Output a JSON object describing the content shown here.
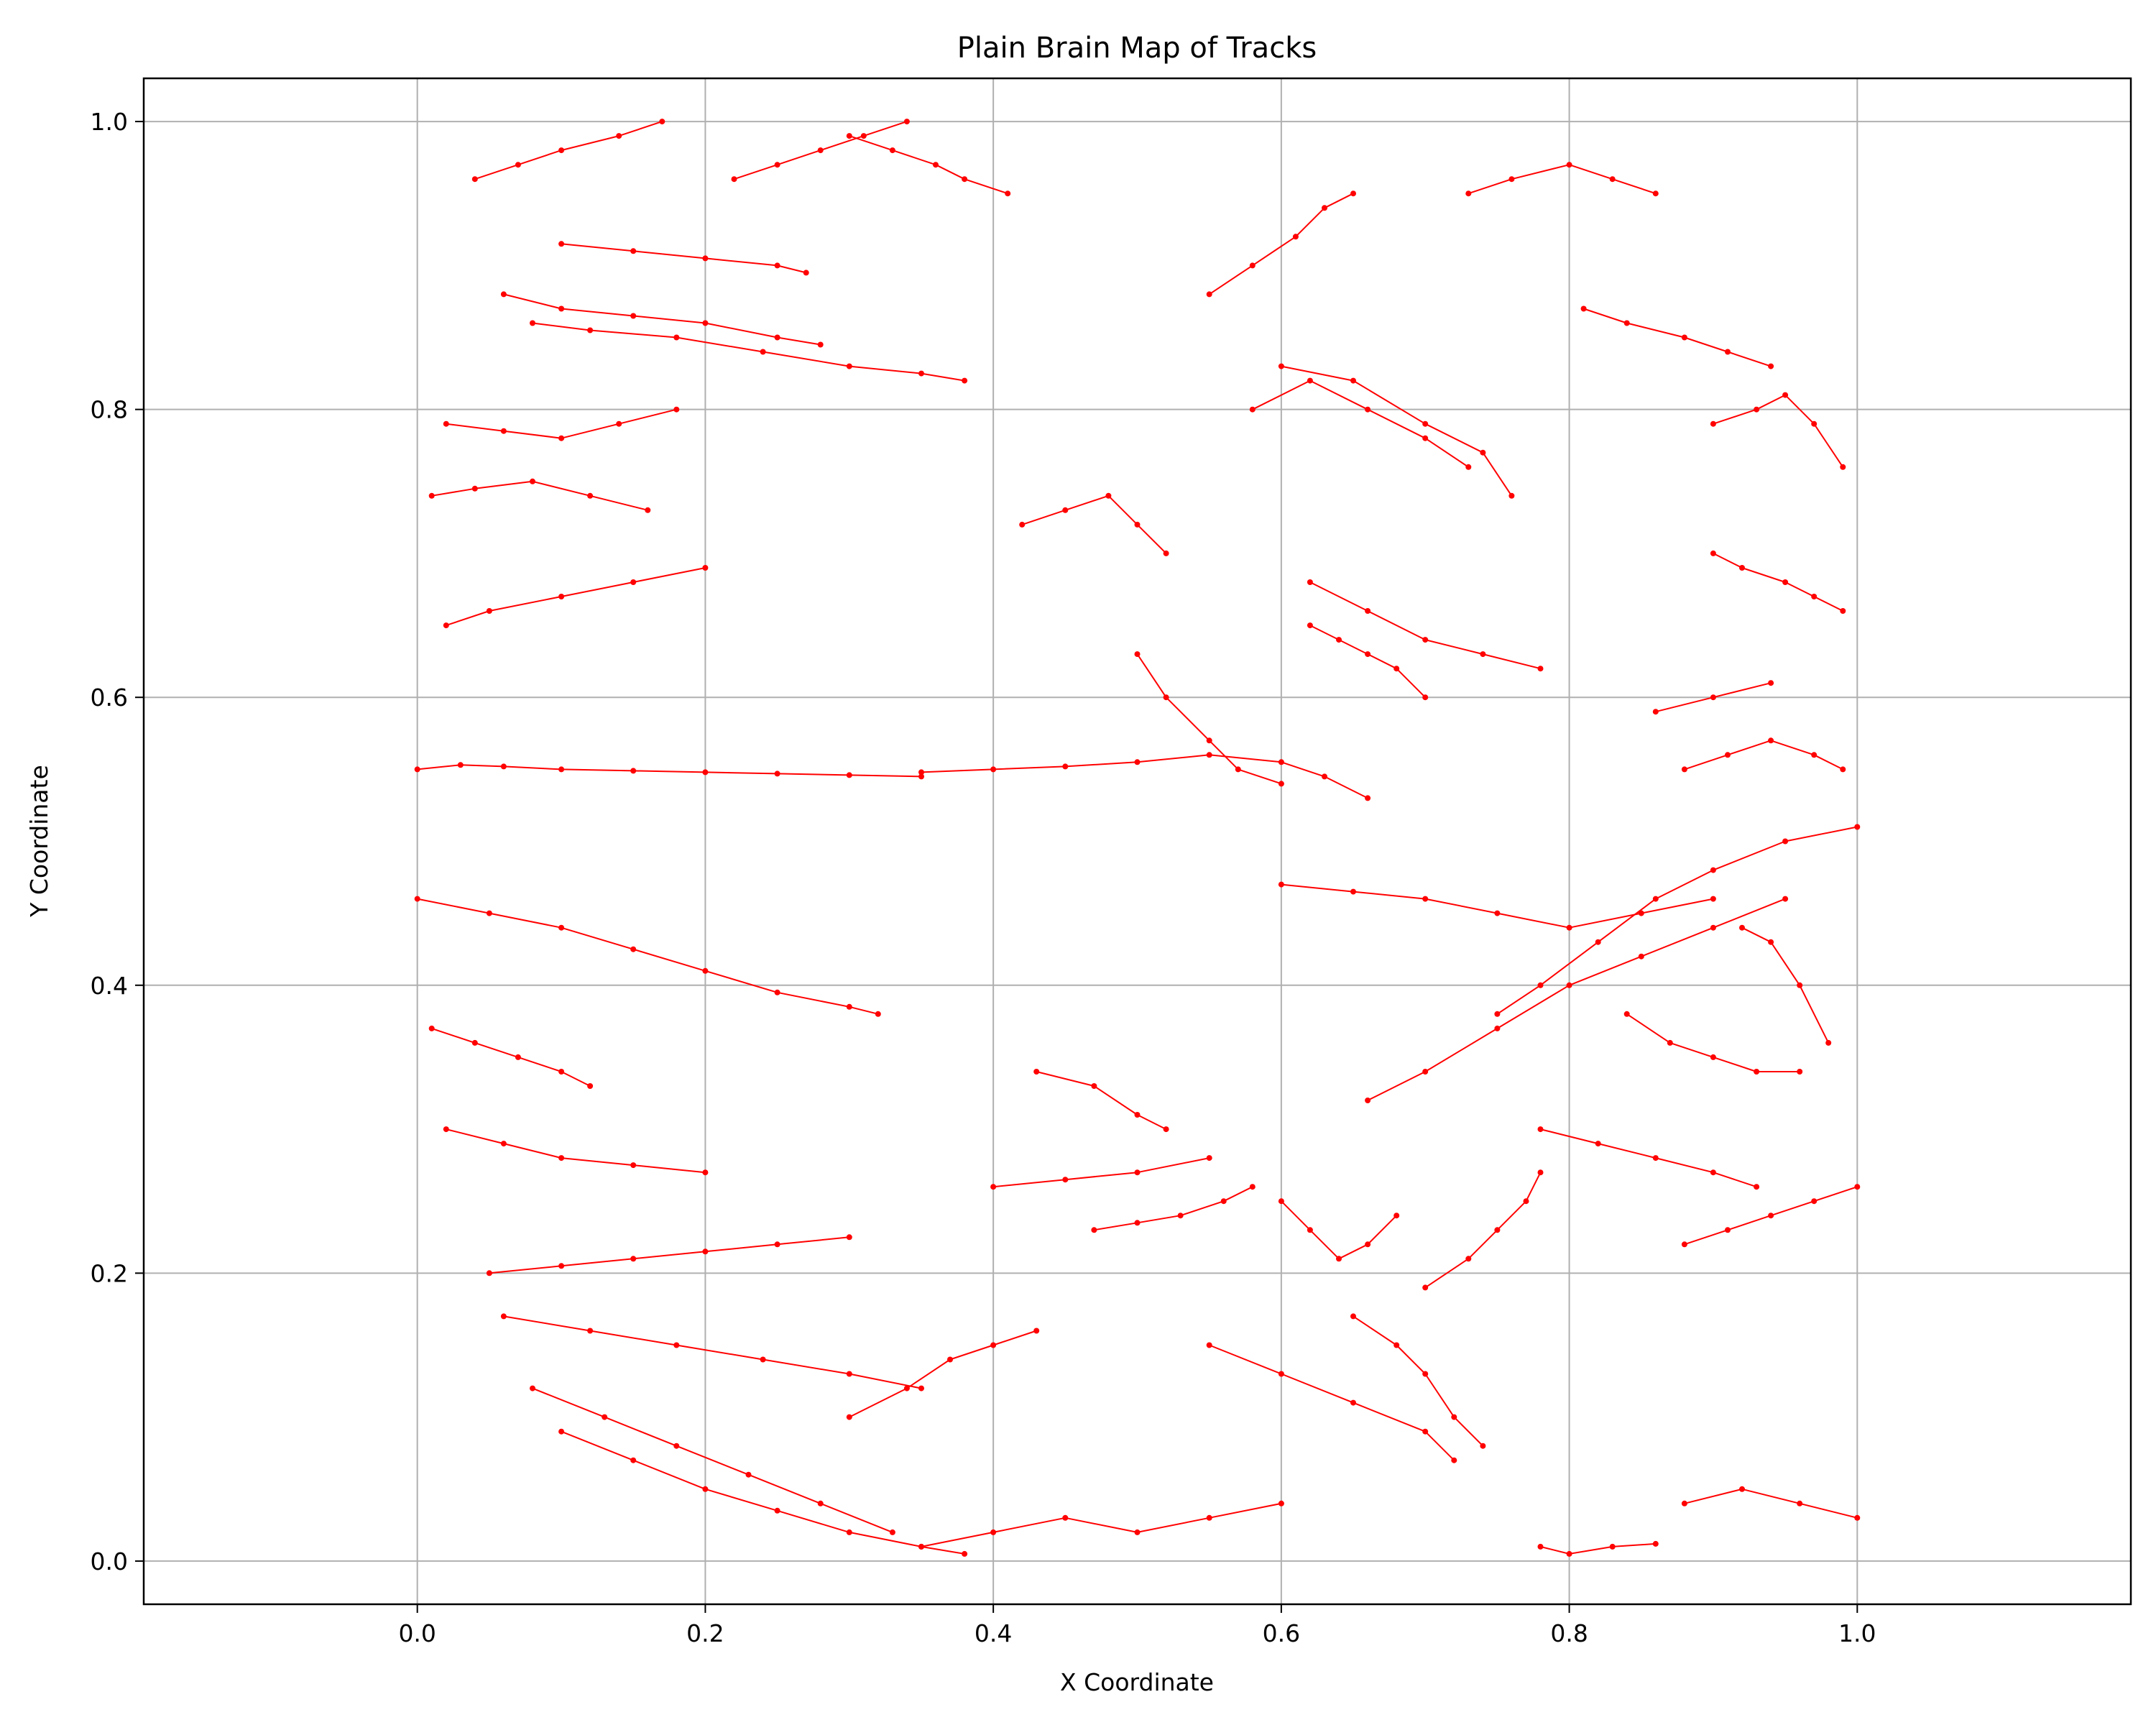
{
  "chart_data": {
    "type": "line",
    "title": "Plain Brain Map of Tracks",
    "xlabel": "X Coordinate",
    "ylabel": "Y Coordinate",
    "xlim": [
      -0.19,
      1.19
    ],
    "ylim": [
      -0.03,
      1.03
    ],
    "xticks": [
      0.0,
      0.2,
      0.4,
      0.6,
      0.8,
      1.0
    ],
    "xtick_labels": [
      "0.0",
      "0.2",
      "0.4",
      "0.6",
      "0.8",
      "1.0"
    ],
    "yticks": [
      0.0,
      0.2,
      0.4,
      0.6,
      0.8,
      1.0
    ],
    "ytick_labels": [
      "0.0",
      "0.2",
      "0.4",
      "0.6",
      "0.8",
      "1.0"
    ],
    "grid": true,
    "legend": false,
    "series_color": "#ff0000",
    "marker": "dot",
    "series": [
      {
        "x": [
          0.0,
          0.03,
          0.06,
          0.1,
          0.15,
          0.2,
          0.25,
          0.3,
          0.35
        ],
        "y": [
          0.55,
          0.553,
          0.552,
          0.55,
          0.549,
          0.548,
          0.547,
          0.546,
          0.545
        ]
      },
      {
        "x": [
          0.35,
          0.4,
          0.45,
          0.5,
          0.55,
          0.6,
          0.63,
          0.66
        ],
        "y": [
          0.548,
          0.55,
          0.552,
          0.555,
          0.56,
          0.555,
          0.545,
          0.53
        ]
      },
      {
        "x": [
          0.0,
          0.05,
          0.1,
          0.15,
          0.2,
          0.25,
          0.3,
          0.32
        ],
        "y": [
          0.46,
          0.45,
          0.44,
          0.425,
          0.41,
          0.395,
          0.385,
          0.38
        ]
      },
      {
        "x": [
          0.06,
          0.1,
          0.15,
          0.2,
          0.25,
          0.28
        ],
        "y": [
          0.88,
          0.87,
          0.865,
          0.86,
          0.85,
          0.845
        ]
      },
      {
        "x": [
          0.08,
          0.12,
          0.18,
          0.24,
          0.3,
          0.35,
          0.38
        ],
        "y": [
          0.86,
          0.855,
          0.85,
          0.84,
          0.83,
          0.825,
          0.82
        ]
      },
      {
        "x": [
          0.1,
          0.15,
          0.2,
          0.25,
          0.27
        ],
        "y": [
          0.915,
          0.91,
          0.905,
          0.9,
          0.895
        ]
      },
      {
        "x": [
          0.02,
          0.06,
          0.1,
          0.14,
          0.18
        ],
        "y": [
          0.79,
          0.785,
          0.78,
          0.79,
          0.8
        ]
      },
      {
        "x": [
          0.01,
          0.04,
          0.08,
          0.12,
          0.16
        ],
        "y": [
          0.74,
          0.745,
          0.75,
          0.74,
          0.73
        ]
      },
      {
        "x": [
          0.04,
          0.07,
          0.1,
          0.14,
          0.17
        ],
        "y": [
          0.96,
          0.97,
          0.98,
          0.99,
          1.0
        ]
      },
      {
        "x": [
          0.02,
          0.05,
          0.1,
          0.15,
          0.2
        ],
        "y": [
          0.65,
          0.66,
          0.67,
          0.68,
          0.69
        ]
      },
      {
        "x": [
          0.01,
          0.04,
          0.07,
          0.1,
          0.12
        ],
        "y": [
          0.37,
          0.36,
          0.35,
          0.34,
          0.33
        ]
      },
      {
        "x": [
          0.02,
          0.06,
          0.1,
          0.15,
          0.2
        ],
        "y": [
          0.3,
          0.29,
          0.28,
          0.275,
          0.27
        ]
      },
      {
        "x": [
          0.05,
          0.1,
          0.15,
          0.2,
          0.25,
          0.3
        ],
        "y": [
          0.2,
          0.205,
          0.21,
          0.215,
          0.22,
          0.225
        ]
      },
      {
        "x": [
          0.06,
          0.12,
          0.18,
          0.24,
          0.3,
          0.35
        ],
        "y": [
          0.17,
          0.16,
          0.15,
          0.14,
          0.13,
          0.12
        ]
      },
      {
        "x": [
          0.08,
          0.13,
          0.18,
          0.23,
          0.28,
          0.33
        ],
        "y": [
          0.12,
          0.1,
          0.08,
          0.06,
          0.04,
          0.02
        ]
      },
      {
        "x": [
          0.1,
          0.15,
          0.2,
          0.25,
          0.3,
          0.35,
          0.38
        ],
        "y": [
          0.09,
          0.07,
          0.05,
          0.035,
          0.02,
          0.01,
          0.005
        ]
      },
      {
        "x": [
          0.3,
          0.34,
          0.37,
          0.4,
          0.43
        ],
        "y": [
          0.1,
          0.12,
          0.14,
          0.15,
          0.16
        ]
      },
      {
        "x": [
          0.35,
          0.4,
          0.45,
          0.5,
          0.55,
          0.6
        ],
        "y": [
          0.01,
          0.02,
          0.03,
          0.02,
          0.03,
          0.04
        ]
      },
      {
        "x": [
          0.6,
          0.65,
          0.7,
          0.75,
          0.8,
          0.85,
          0.9
        ],
        "y": [
          0.47,
          0.465,
          0.46,
          0.45,
          0.44,
          0.45,
          0.46
        ]
      },
      {
        "x": [
          0.66,
          0.7,
          0.75,
          0.8,
          0.85,
          0.9,
          0.95
        ],
        "y": [
          0.32,
          0.34,
          0.37,
          0.4,
          0.42,
          0.44,
          0.46
        ]
      },
      {
        "x": [
          0.75,
          0.78,
          0.82,
          0.86,
          0.9,
          0.95,
          1.0
        ],
        "y": [
          0.38,
          0.4,
          0.43,
          0.46,
          0.48,
          0.5,
          0.51
        ]
      },
      {
        "x": [
          0.58,
          0.62,
          0.66,
          0.7,
          0.73
        ],
        "y": [
          0.8,
          0.82,
          0.8,
          0.78,
          0.76
        ]
      },
      {
        "x": [
          0.6,
          0.65,
          0.7,
          0.74,
          0.76
        ],
        "y": [
          0.83,
          0.82,
          0.79,
          0.77,
          0.74
        ]
      },
      {
        "x": [
          0.6,
          0.62,
          0.64,
          0.66,
          0.68
        ],
        "y": [
          0.25,
          0.23,
          0.21,
          0.22,
          0.24
        ]
      },
      {
        "x": [
          0.55,
          0.6,
          0.65,
          0.7,
          0.72
        ],
        "y": [
          0.15,
          0.13,
          0.11,
          0.09,
          0.07
        ]
      },
      {
        "x": [
          0.65,
          0.68,
          0.7,
          0.72,
          0.74
        ],
        "y": [
          0.17,
          0.15,
          0.13,
          0.1,
          0.08
        ]
      },
      {
        "x": [
          0.7,
          0.73,
          0.75,
          0.77,
          0.78
        ],
        "y": [
          0.19,
          0.21,
          0.23,
          0.25,
          0.27
        ]
      },
      {
        "x": [
          0.43,
          0.47,
          0.5,
          0.52
        ],
        "y": [
          0.34,
          0.33,
          0.31,
          0.3
        ]
      },
      {
        "x": [
          0.47,
          0.5,
          0.53,
          0.56,
          0.58
        ],
        "y": [
          0.23,
          0.235,
          0.24,
          0.25,
          0.26
        ]
      },
      {
        "x": [
          0.4,
          0.45,
          0.5,
          0.55
        ],
        "y": [
          0.26,
          0.265,
          0.27,
          0.28
        ]
      },
      {
        "x": [
          0.42,
          0.45,
          0.48,
          0.5,
          0.52
        ],
        "y": [
          0.72,
          0.73,
          0.74,
          0.72,
          0.7
        ]
      },
      {
        "x": [
          0.5,
          0.52,
          0.55,
          0.57,
          0.6
        ],
        "y": [
          0.63,
          0.6,
          0.57,
          0.55,
          0.54
        ]
      },
      {
        "x": [
          0.55,
          0.58,
          0.61,
          0.63,
          0.65
        ],
        "y": [
          0.88,
          0.9,
          0.92,
          0.94,
          0.95
        ]
      },
      {
        "x": [
          0.3,
          0.33,
          0.36,
          0.38,
          0.41
        ],
        "y": [
          0.99,
          0.98,
          0.97,
          0.96,
          0.95
        ]
      },
      {
        "x": [
          0.22,
          0.25,
          0.28,
          0.31,
          0.34
        ],
        "y": [
          0.96,
          0.97,
          0.98,
          0.99,
          1.0
        ]
      },
      {
        "x": [
          0.73,
          0.76,
          0.8,
          0.83,
          0.86
        ],
        "y": [
          0.95,
          0.96,
          0.97,
          0.96,
          0.95
        ]
      },
      {
        "x": [
          0.81,
          0.84,
          0.88,
          0.91,
          0.94
        ],
        "y": [
          0.87,
          0.86,
          0.85,
          0.84,
          0.83
        ]
      },
      {
        "x": [
          0.9,
          0.93,
          0.95,
          0.97,
          0.99
        ],
        "y": [
          0.79,
          0.8,
          0.81,
          0.79,
          0.76
        ]
      },
      {
        "x": [
          0.9,
          0.92,
          0.95,
          0.97,
          0.99
        ],
        "y": [
          0.7,
          0.69,
          0.68,
          0.67,
          0.66
        ]
      },
      {
        "x": [
          0.88,
          0.91,
          0.94,
          0.97,
          0.99
        ],
        "y": [
          0.55,
          0.56,
          0.57,
          0.56,
          0.55
        ]
      },
      {
        "x": [
          0.88,
          0.91,
          0.94,
          0.97,
          1.0
        ],
        "y": [
          0.22,
          0.23,
          0.24,
          0.25,
          0.26
        ]
      },
      {
        "x": [
          0.88,
          0.92,
          0.96,
          1.0
        ],
        "y": [
          0.04,
          0.05,
          0.04,
          0.03
        ]
      },
      {
        "x": [
          0.78,
          0.8,
          0.83,
          0.86
        ],
        "y": [
          0.01,
          0.005,
          0.01,
          0.012
        ]
      },
      {
        "x": [
          0.84,
          0.87,
          0.9,
          0.93,
          0.96
        ],
        "y": [
          0.38,
          0.36,
          0.35,
          0.34,
          0.34
        ]
      },
      {
        "x": [
          0.78,
          0.82,
          0.86,
          0.9,
          0.93
        ],
        "y": [
          0.3,
          0.29,
          0.28,
          0.27,
          0.26
        ]
      },
      {
        "x": [
          0.62,
          0.66,
          0.7,
          0.74,
          0.78
        ],
        "y": [
          0.68,
          0.66,
          0.64,
          0.63,
          0.62
        ]
      },
      {
        "x": [
          0.62,
          0.64,
          0.66,
          0.68,
          0.7
        ],
        "y": [
          0.65,
          0.64,
          0.63,
          0.62,
          0.6
        ]
      },
      {
        "x": [
          0.86,
          0.9,
          0.94
        ],
        "y": [
          0.59,
          0.6,
          0.61
        ]
      },
      {
        "x": [
          0.92,
          0.94,
          0.96,
          0.98
        ],
        "y": [
          0.44,
          0.43,
          0.4,
          0.36
        ]
      }
    ]
  }
}
